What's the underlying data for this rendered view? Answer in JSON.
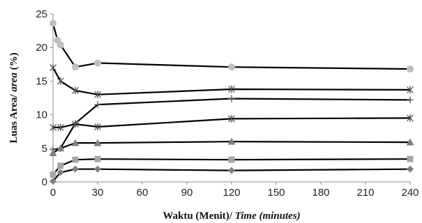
{
  "chart_data": {
    "type": "line",
    "xlabel": {
      "main": "Waktu (Menit)/ ",
      "italic": "Time (minutes)"
    },
    "ylabel": {
      "main": "Luas Area/ ",
      "italic": "area",
      "suffix": " (%)"
    },
    "xlim": [
      0,
      240
    ],
    "ylim": [
      0,
      25
    ],
    "x_ticks": [
      0,
      30,
      60,
      90,
      120,
      150,
      180,
      210,
      240
    ],
    "y_ticks": [
      0,
      5,
      10,
      15,
      20,
      25
    ],
    "grid": false,
    "legend": "none",
    "series": [
      {
        "marker": "circle",
        "color": "#bfbfbf",
        "points": [
          [
            0,
            23.6
          ],
          [
            3,
            21.1
          ],
          [
            5,
            20.4
          ],
          [
            15,
            17.1
          ],
          [
            30,
            17.7
          ],
          [
            120,
            17.1
          ],
          [
            240,
            16.8
          ]
        ]
      },
      {
        "marker": "star",
        "color": "#555555",
        "points": [
          [
            0,
            17.0
          ],
          [
            5,
            15.0
          ],
          [
            15,
            13.6
          ],
          [
            30,
            13.0
          ],
          [
            120,
            13.8
          ],
          [
            240,
            13.7
          ]
        ]
      },
      {
        "marker": "plus",
        "color": "#555555",
        "points": [
          [
            0,
            4.8
          ],
          [
            5,
            5.0
          ],
          [
            15,
            8.7
          ],
          [
            30,
            11.5
          ],
          [
            120,
            12.4
          ],
          [
            240,
            12.2
          ]
        ]
      },
      {
        "marker": "star",
        "color": "#555555",
        "points": [
          [
            0,
            8.1
          ],
          [
            5,
            8.1
          ],
          [
            15,
            8.6
          ],
          [
            30,
            8.2
          ],
          [
            120,
            9.4
          ],
          [
            240,
            9.5
          ]
        ]
      },
      {
        "marker": "triangle",
        "color": "#7f7f7f",
        "points": [
          [
            0,
            4.3
          ],
          [
            5,
            5.0
          ],
          [
            15,
            5.8
          ],
          [
            30,
            5.8
          ],
          [
            120,
            6.0
          ],
          [
            240,
            5.9
          ]
        ]
      },
      {
        "marker": "square",
        "color": "#a6a6a6",
        "points": [
          [
            0,
            1.1
          ],
          [
            5,
            2.4
          ],
          [
            15,
            3.3
          ],
          [
            30,
            3.4
          ],
          [
            120,
            3.3
          ],
          [
            240,
            3.4
          ]
        ]
      },
      {
        "marker": "diamond",
        "color": "#7f7f7f",
        "points": [
          [
            0,
            0.1
          ],
          [
            5,
            1.4
          ],
          [
            15,
            1.9
          ],
          [
            30,
            1.9
          ],
          [
            120,
            1.7
          ],
          [
            240,
            1.9
          ]
        ]
      }
    ]
  }
}
